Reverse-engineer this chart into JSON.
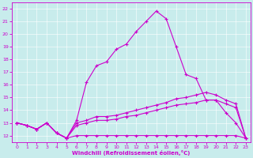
{
  "xlabel": "Windchill (Refroidissement éolien,°C)",
  "bg_color": "#c8ecec",
  "line_color": "#cc00cc",
  "grid_color": "#b0d8d8",
  "xlim": [
    -0.5,
    23.5
  ],
  "ylim": [
    11.5,
    22.5
  ],
  "yticks": [
    12,
    13,
    14,
    15,
    16,
    17,
    18,
    19,
    20,
    21,
    22
  ],
  "xticks": [
    0,
    1,
    2,
    3,
    4,
    5,
    6,
    7,
    8,
    9,
    10,
    11,
    12,
    13,
    14,
    15,
    16,
    17,
    18,
    19,
    20,
    21,
    22,
    23
  ],
  "line1_x": [
    0,
    1,
    2,
    3,
    4,
    5,
    6,
    7,
    8,
    9,
    10,
    11,
    12,
    13,
    14,
    15,
    16,
    17,
    18,
    19,
    20,
    21,
    22,
    23
  ],
  "line1_y": [
    13.0,
    12.8,
    12.5,
    13.0,
    12.2,
    11.8,
    12.0,
    12.0,
    12.0,
    12.0,
    12.0,
    12.0,
    12.0,
    12.0,
    12.0,
    12.0,
    12.0,
    12.0,
    12.0,
    12.0,
    12.0,
    12.0,
    12.0,
    11.8
  ],
  "line2_x": [
    0,
    1,
    2,
    3,
    4,
    5,
    6,
    7,
    8,
    9,
    10,
    11,
    12,
    13,
    14,
    15,
    16,
    17,
    18,
    19,
    20,
    21,
    22,
    23
  ],
  "line2_y": [
    13.0,
    12.8,
    12.5,
    13.0,
    12.2,
    11.8,
    12.8,
    13.0,
    13.2,
    13.2,
    13.3,
    13.5,
    13.6,
    13.8,
    14.0,
    14.2,
    14.4,
    14.5,
    14.6,
    14.8,
    14.8,
    14.5,
    14.2,
    11.8
  ],
  "line3_x": [
    0,
    1,
    2,
    3,
    4,
    5,
    6,
    7,
    8,
    9,
    10,
    11,
    12,
    13,
    14,
    15,
    16,
    17,
    18,
    19,
    20,
    21,
    22,
    23
  ],
  "line3_y": [
    13.0,
    12.8,
    12.5,
    13.0,
    12.2,
    11.8,
    13.0,
    13.2,
    13.5,
    13.5,
    13.6,
    13.8,
    14.0,
    14.2,
    14.4,
    14.6,
    14.9,
    15.0,
    15.2,
    15.4,
    15.2,
    14.8,
    14.5,
    11.8
  ],
  "line4_x": [
    0,
    1,
    2,
    3,
    4,
    5,
    6,
    7,
    8,
    9,
    10,
    11,
    12,
    13,
    14,
    15,
    16,
    17,
    18,
    19,
    20,
    21,
    22,
    23
  ],
  "line4_y": [
    13.0,
    12.8,
    12.5,
    13.0,
    12.2,
    11.8,
    13.2,
    16.2,
    17.5,
    17.8,
    18.8,
    19.2,
    20.2,
    21.0,
    21.8,
    21.2,
    19.0,
    16.8,
    16.5,
    14.8,
    14.8,
    13.8,
    13.0,
    11.8
  ],
  "marker": "+",
  "markersize": 3,
  "linewidth": 0.8
}
